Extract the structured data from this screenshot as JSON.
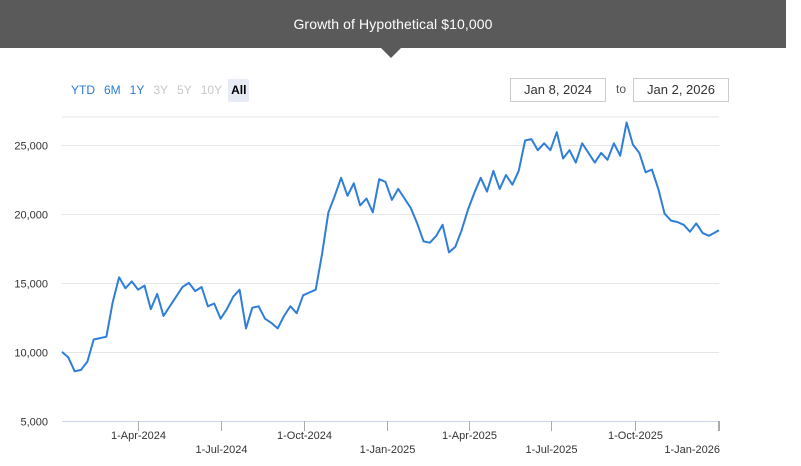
{
  "header": {
    "title": "Growth of Hypothetical $10,000"
  },
  "range_selector": {
    "buttons": [
      {
        "label": "YTD",
        "state": "enabled"
      },
      {
        "label": "6M",
        "state": "enabled"
      },
      {
        "label": "1Y",
        "state": "enabled"
      },
      {
        "label": "3Y",
        "state": "disabled"
      },
      {
        "label": "5Y",
        "state": "disabled"
      },
      {
        "label": "10Y",
        "state": "disabled"
      },
      {
        "label": "All",
        "state": "selected"
      }
    ],
    "from_date": "Jan 8, 2024",
    "to_label": "to",
    "to_date": "Jan 2, 2026"
  },
  "colors": {
    "header_bg": "#5a5a5a",
    "line": "#2f7ed8",
    "grid": "#e6e6e6",
    "button_active": "#2b7bd6"
  },
  "chart_data": {
    "type": "line",
    "title": "Growth of Hypothetical $10,000",
    "ylim": [
      5000,
      27000
    ],
    "yticks": [
      5000,
      10000,
      15000,
      20000,
      25000
    ],
    "ytick_labels": [
      "5,000",
      "10,000",
      "15,000",
      "20,000",
      "25,000"
    ],
    "xlim": [
      "2024-01-08",
      "2026-01-02"
    ],
    "xticks": [
      "2024-04-01",
      "2024-07-01",
      "2024-10-01",
      "2025-01-01",
      "2025-04-01",
      "2025-07-01",
      "2025-10-01",
      "2026-01-01"
    ],
    "xtick_labels": [
      "1-Apr-2024",
      "1-Jul-2024",
      "1-Oct-2024",
      "1-Jan-2025",
      "1-Apr-2025",
      "1-Jul-2025",
      "1-Oct-2025",
      "1-Jan-2026"
    ],
    "grid": true,
    "legend": "none",
    "series": [
      {
        "x": [
          "2024-01-08",
          "2024-01-15",
          "2024-01-22",
          "2024-01-29",
          "2024-02-05",
          "2024-02-12",
          "2024-02-19",
          "2024-02-26",
          "2024-03-04",
          "2024-03-11",
          "2024-03-18",
          "2024-03-25",
          "2024-04-01",
          "2024-04-08",
          "2024-04-15",
          "2024-04-22",
          "2024-04-29",
          "2024-05-06",
          "2024-05-13",
          "2024-05-20",
          "2024-05-27",
          "2024-06-03",
          "2024-06-10",
          "2024-06-17",
          "2024-06-24",
          "2024-07-01",
          "2024-07-08",
          "2024-07-15",
          "2024-07-22",
          "2024-07-29",
          "2024-08-05",
          "2024-08-12",
          "2024-08-19",
          "2024-08-26",
          "2024-09-02",
          "2024-09-09",
          "2024-09-16",
          "2024-09-23",
          "2024-09-30",
          "2024-10-07",
          "2024-10-14",
          "2024-10-21",
          "2024-10-28",
          "2024-11-04",
          "2024-11-11",
          "2024-11-18",
          "2024-11-25",
          "2024-12-02",
          "2024-12-09",
          "2024-12-16",
          "2024-12-23",
          "2024-12-30",
          "2025-01-06",
          "2025-01-13",
          "2025-01-20",
          "2025-01-27",
          "2025-02-03",
          "2025-02-10",
          "2025-02-17",
          "2025-02-24",
          "2025-03-03",
          "2025-03-10",
          "2025-03-17",
          "2025-03-24",
          "2025-03-31",
          "2025-04-07",
          "2025-04-14",
          "2025-04-21",
          "2025-04-28",
          "2025-05-05",
          "2025-05-12",
          "2025-05-19",
          "2025-05-26",
          "2025-06-02",
          "2025-06-09",
          "2025-06-16",
          "2025-06-23",
          "2025-06-30",
          "2025-07-07",
          "2025-07-14",
          "2025-07-21",
          "2025-07-28",
          "2025-08-04",
          "2025-08-11",
          "2025-08-18",
          "2025-08-25",
          "2025-09-01",
          "2025-09-08",
          "2025-09-15",
          "2025-09-22",
          "2025-09-29",
          "2025-10-06",
          "2025-10-13",
          "2025-10-20",
          "2025-10-27",
          "2025-11-03",
          "2025-11-10",
          "2025-11-17",
          "2025-11-24",
          "2025-12-01",
          "2025-12-08",
          "2025-12-15",
          "2025-12-22",
          "2026-01-02"
        ],
        "y": [
          10000,
          9600,
          8600,
          8700,
          9300,
          10900,
          11000,
          11100,
          13600,
          15400,
          14600,
          15100,
          14500,
          14800,
          13100,
          14200,
          12600,
          13300,
          14000,
          14700,
          15000,
          14400,
          14700,
          13300,
          13500,
          12400,
          13100,
          14000,
          14500,
          11700,
          13200,
          13300,
          12400,
          12100,
          11700,
          12600,
          13300,
          12800,
          14100,
          14300,
          14500,
          17100,
          20100,
          21300,
          22600,
          21300,
          22200,
          20600,
          21100,
          20100,
          22500,
          22300,
          21000,
          21800,
          21100,
          20400,
          19300,
          18000,
          17900,
          18400,
          19200,
          17200,
          17600,
          18800,
          20300,
          21500,
          22600,
          21600,
          23100,
          21800,
          22800,
          22100,
          23100,
          25300,
          25400,
          24600,
          25100,
          24600,
          25900,
          24000,
          24600,
          23700,
          25100,
          24400,
          23700,
          24400,
          23900,
          25100,
          24200,
          26600,
          25000,
          24400,
          23000,
          23200,
          21800,
          20000,
          19500,
          19400,
          19200,
          18700,
          19300,
          18600,
          18400,
          18800
        ]
      }
    ]
  }
}
